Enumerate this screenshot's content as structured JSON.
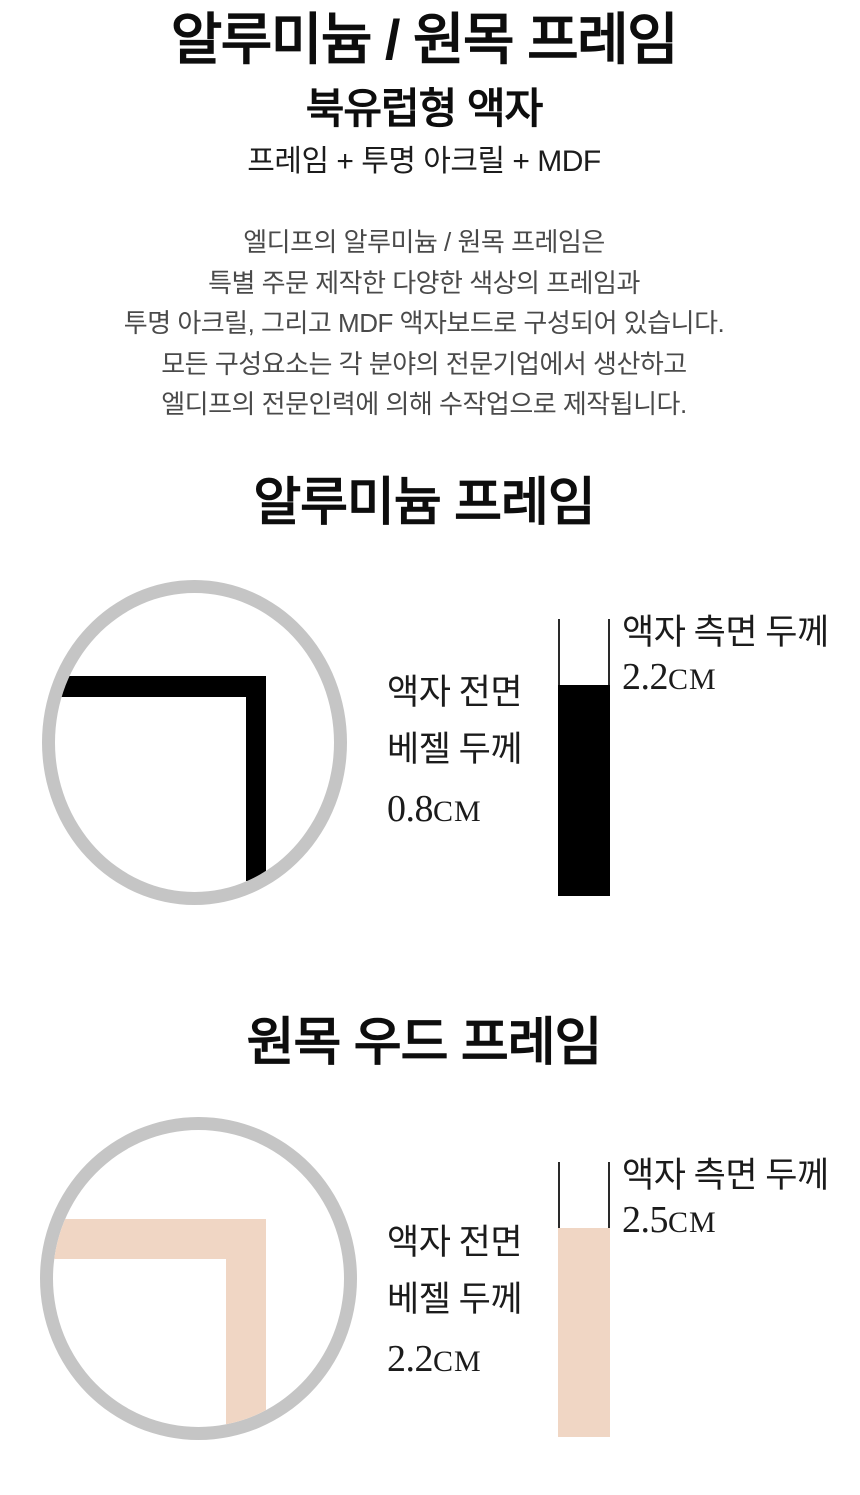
{
  "page": {
    "title": "알루미늄 / 원목 프레임",
    "subtitle": "북유럽형 액자",
    "composition": "프레임 + 투명 아크릴 + MDF",
    "description_lines": [
      "엘디프의 알루미늄 / 원목 프레임은",
      "특별 주문 제작한 다양한 색상의 프레임과",
      "투명 아크릴, 그리고 MDF 액자보드로 구성되어 있습니다.",
      "모든 구성요소는 각 분야의 전문기업에서 생산하고",
      "엘디프의 전문인력에 의해 수작업으로 제작됩니다."
    ]
  },
  "colors": {
    "ring_gray": "#c5c5c5",
    "aluminum_frame": "#000000",
    "wood_frame": "#f0d6c4",
    "measure_line": "#2a2a2a"
  },
  "sections": [
    {
      "heading": "알루미늄 프레임",
      "front_label_line1": "액자 전면",
      "front_label_line2": "베젤 두께",
      "front_value": "0.8",
      "front_unit": "CM",
      "side_label": "액자 측면 두께",
      "side_value": "2.2",
      "side_unit": "CM",
      "frame_color": "#000000"
    },
    {
      "heading": "원목 우드 프레임",
      "front_label_line1": "액자 전면",
      "front_label_line2": "베젤 두께",
      "front_value": "2.2",
      "front_unit": "CM",
      "side_label": "액자 측면 두께",
      "side_value": "2.5",
      "side_unit": "CM",
      "frame_color": "#f0d6c4"
    }
  ]
}
